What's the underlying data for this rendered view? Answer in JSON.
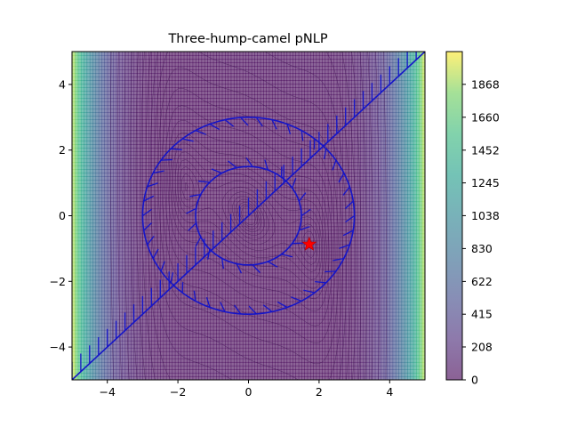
{
  "chart_data": {
    "type": "heatmap",
    "title": "Three-hump-camel pNLP",
    "xlabel": "",
    "ylabel": "",
    "xlim": [
      -5,
      5
    ],
    "ylim": [
      -5,
      5
    ],
    "x_ticks": [
      "−4",
      "−2",
      "0",
      "2",
      "4"
    ],
    "y_ticks": [
      "−4",
      "−2",
      "0",
      "2",
      "4"
    ],
    "function": "three-hump camel: 2x^2 - 1.05x^4 + x^6/6 + xy + y^2",
    "colormap": "viridis",
    "colorbar": {
      "range": [
        0,
        2075
      ],
      "ticks": [
        0,
        208,
        415,
        622,
        830,
        1038,
        1245,
        1452,
        1660,
        1868
      ]
    },
    "constraints": [
      {
        "kind": "circle",
        "center": [
          0,
          0
        ],
        "radius": 3,
        "color": "#1515c8",
        "hatch": "inside"
      },
      {
        "kind": "circle",
        "center": [
          0,
          0
        ],
        "radius": 1.5,
        "color": "#1515c8",
        "hatch": "outside"
      },
      {
        "kind": "line",
        "from": [
          -5,
          -5
        ],
        "to": [
          5,
          5
        ],
        "color": "#1515c8",
        "hatch": "upper-left"
      }
    ],
    "optimum_marker": {
      "x": 1.72,
      "y": -0.87,
      "shape": "star",
      "color": "#ff0000"
    },
    "grid": false,
    "legend": "none"
  }
}
